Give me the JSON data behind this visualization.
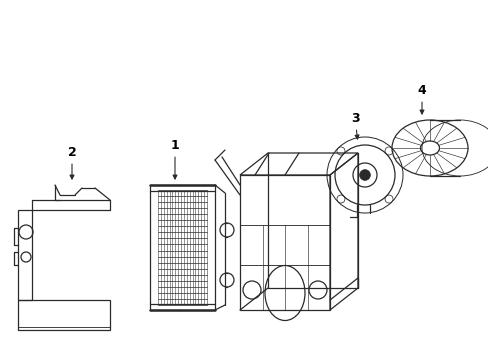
{
  "bg_color": "#ffffff",
  "line_color": "#2a2a2a",
  "label_color": "#000000",
  "figsize": [
    4.89,
    3.6
  ],
  "dpi": 100
}
